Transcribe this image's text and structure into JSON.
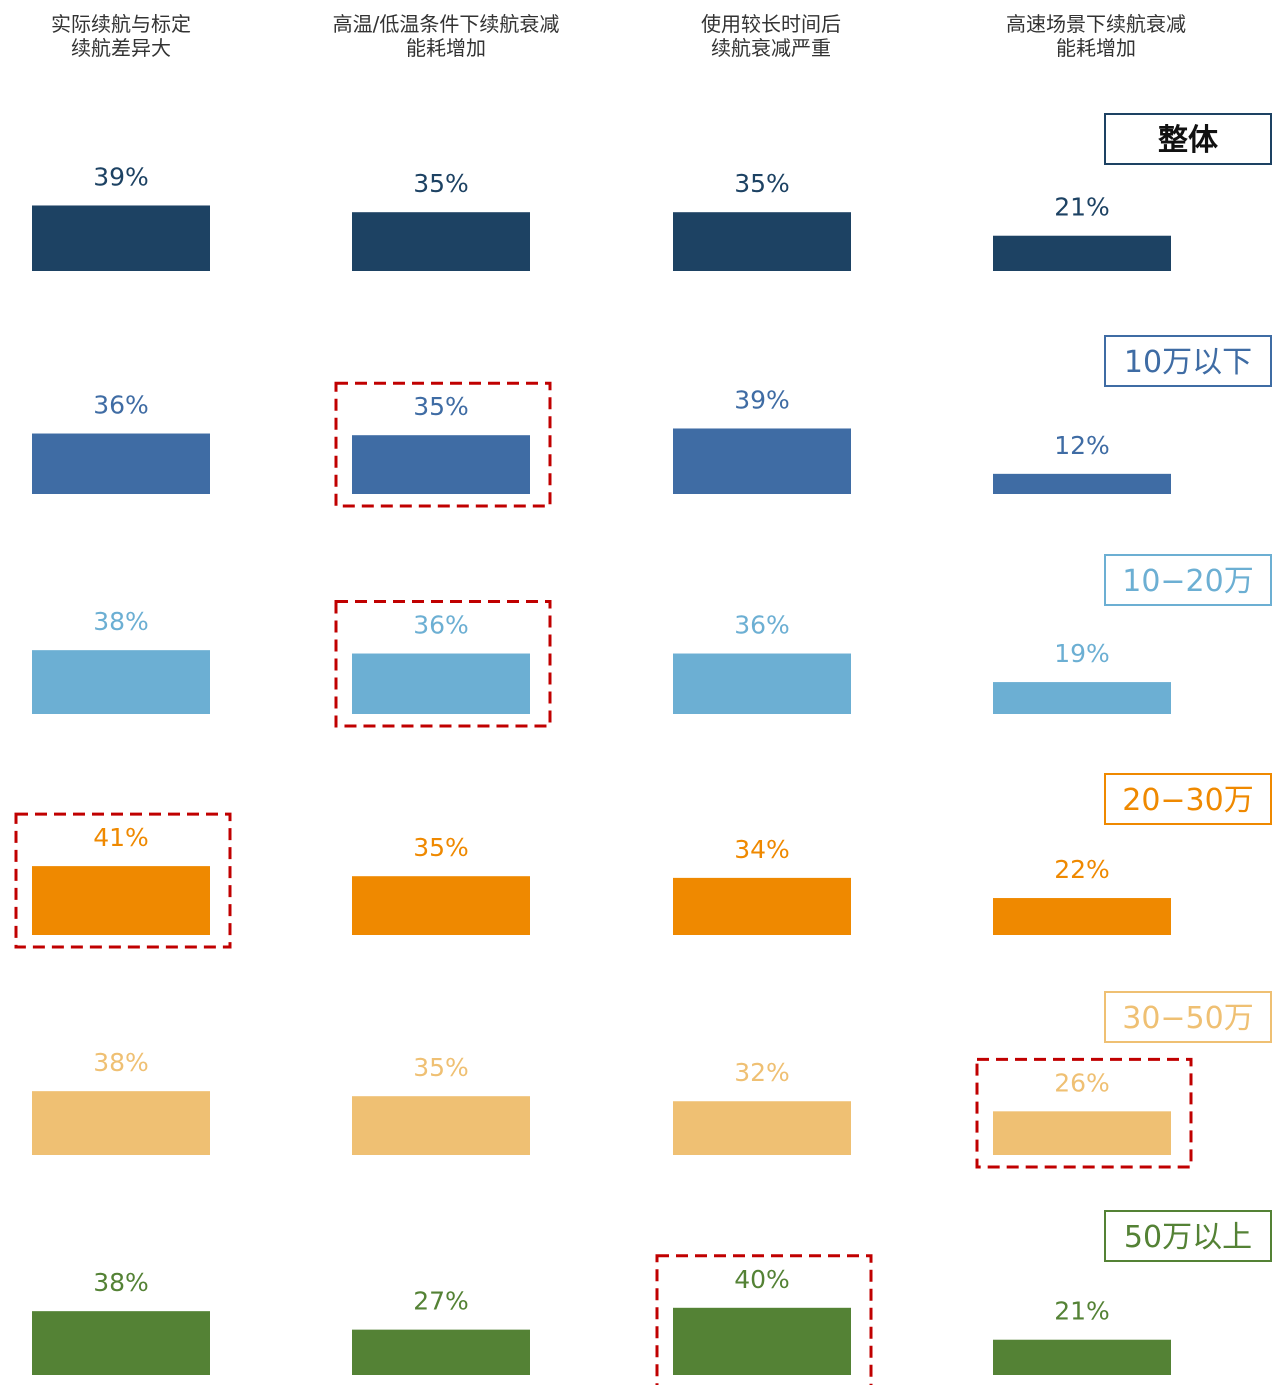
{
  "chart_data": {
    "type": "bar",
    "categories": [
      [
        "实际续航与标定",
        "续航差异大"
      ],
      [
        "高温/低温条件下续航衰减",
        "能耗增加"
      ],
      [
        "使用较长时间后",
        "续航衰减严重"
      ],
      [
        "高速场景下续航衰减",
        "能耗增加"
      ]
    ],
    "series": [
      {
        "name": "整体",
        "values": [
          39,
          35,
          35,
          21
        ],
        "labels": [
          "39%",
          "35%",
          "35%",
          "21%"
        ],
        "color": "#1d4263",
        "highlight": [
          false,
          false,
          false,
          false
        ]
      },
      {
        "name": "10万以下",
        "values": [
          36,
          35,
          39,
          12
        ],
        "labels": [
          "36%",
          "35%",
          "39%",
          "12%"
        ],
        "color": "#3f6ca4",
        "highlight": [
          false,
          true,
          false,
          false
        ]
      },
      {
        "name": "10−20万",
        "values": [
          38,
          36,
          36,
          19
        ],
        "labels": [
          "38%",
          "36%",
          "36%",
          "19%"
        ],
        "color": "#6cafd3",
        "highlight": [
          false,
          true,
          false,
          false
        ]
      },
      {
        "name": "20−30万",
        "values": [
          41,
          35,
          34,
          22
        ],
        "labels": [
          "41%",
          "35%",
          "34%",
          "22%"
        ],
        "color": "#ef8900",
        "highlight": [
          true,
          false,
          false,
          false
        ]
      },
      {
        "name": "30−50万",
        "values": [
          38,
          35,
          32,
          26
        ],
        "labels": [
          "38%",
          "35%",
          "32%",
          "26%"
        ],
        "color": "#efc073",
        "highlight": [
          false,
          false,
          false,
          true
        ]
      },
      {
        "name": "50万以上",
        "values": [
          38,
          27,
          40,
          21
        ],
        "labels": [
          "38%",
          "27%",
          "40%",
          "21%"
        ],
        "color": "#548235",
        "highlight": [
          false,
          false,
          true,
          false
        ]
      }
    ],
    "colors": {
      "header_text": "#333333",
      "highlight_border": "#c00000"
    }
  }
}
